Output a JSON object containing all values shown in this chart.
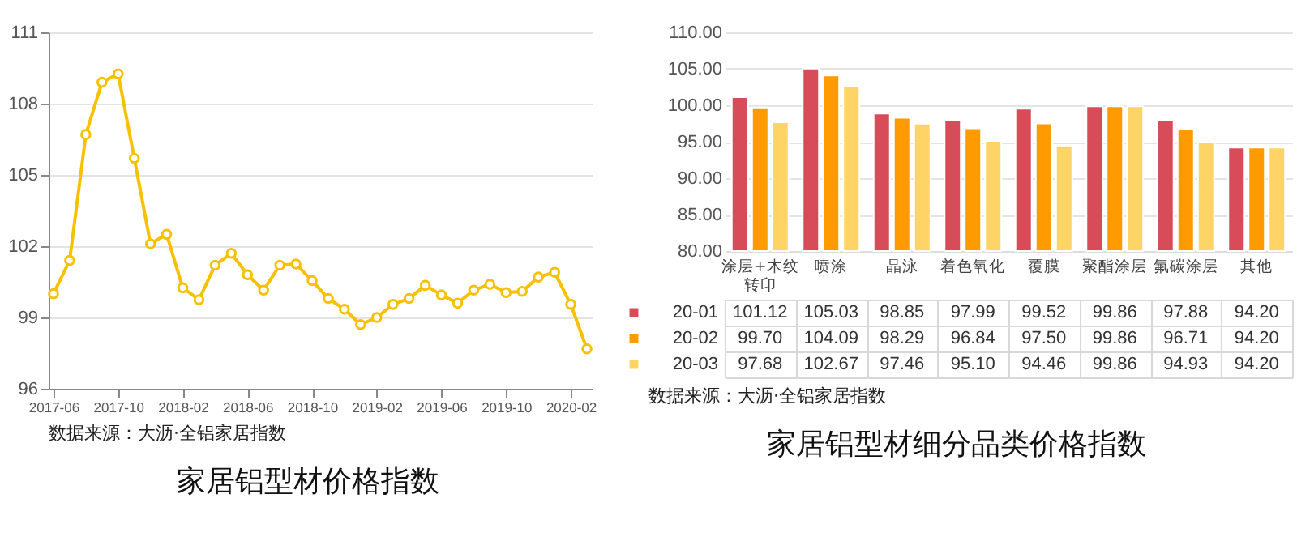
{
  "chart_data": [
    {
      "type": "line",
      "title": "家居铝型材价格指数",
      "annotations": [
        "数据来源：大沥·全铝家居指数"
      ],
      "categories": [
        "2017-06",
        null,
        null,
        null,
        "2017-10",
        null,
        null,
        null,
        "2018-02",
        null,
        null,
        null,
        "2018-06",
        null,
        null,
        null,
        "2018-10",
        null,
        null,
        null,
        "2019-02",
        null,
        null,
        null,
        "2019-06",
        null,
        null,
        null,
        "2019-10",
        null,
        null,
        null,
        "2020-02",
        null
      ],
      "series": [
        {
          "color": "#f7c100",
          "values": [
            100.0,
            101.4,
            106.7,
            108.9,
            109.25,
            105.7,
            102.1,
            102.5,
            100.25,
            99.75,
            101.2,
            101.7,
            100.8,
            100.15,
            101.2,
            101.25,
            100.55,
            99.8,
            99.35,
            98.7,
            99.0,
            99.55,
            99.8,
            100.35,
            99.95,
            99.6,
            100.15,
            100.4,
            100.05,
            100.1,
            100.7,
            100.9,
            99.55,
            97.68
          ]
        }
      ],
      "ylim": [
        96,
        111
      ],
      "yticks": [
        96,
        99,
        102,
        105,
        108,
        111
      ],
      "grid": "y",
      "marker": "circle"
    },
    {
      "type": "bar",
      "title": "家居铝型材细分品类价格指数",
      "annotations": [
        "数据来源：大沥·全铝家居指数"
      ],
      "categories": [
        "涂层+木纹转印",
        "喷涂",
        "晶泳",
        "着色氧化",
        "覆膜",
        "聚酯涂层",
        "氟碳涂层",
        "其他"
      ],
      "series": [
        {
          "name": "20-01",
          "color": "#d84b58",
          "values": [
            101.12,
            105.03,
            98.85,
            97.99,
            99.52,
            99.86,
            97.88,
            94.2
          ]
        },
        {
          "name": "20-02",
          "color": "#ff9a00",
          "values": [
            99.7,
            104.09,
            98.29,
            96.84,
            97.5,
            99.86,
            96.71,
            94.2
          ]
        },
        {
          "name": "20-03",
          "color": "#ffd466",
          "values": [
            97.68,
            102.67,
            97.46,
            95.1,
            94.46,
            99.86,
            94.93,
            94.2
          ]
        }
      ],
      "ylim": [
        80,
        110
      ],
      "yticks": [
        {
          "value": 80,
          "label": "80.00"
        },
        {
          "value": 85,
          "label": "85.00"
        },
        {
          "value": 90,
          "label": "90.00"
        },
        {
          "value": 95,
          "label": "95.00"
        },
        {
          "value": 100,
          "label": "100.00"
        },
        {
          "value": 105,
          "label": "105.00"
        },
        {
          "value": 110,
          "label": "110.00"
        }
      ],
      "grid": "y",
      "legend": "left",
      "value_labels": [
        [
          "101.12",
          "105.03",
          "98.85",
          "97.99",
          "99.52",
          "99.86",
          "97.88",
          "94.20"
        ],
        [
          "99.70",
          "104.09",
          "98.29",
          "96.84",
          "97.50",
          "99.86",
          "96.71",
          "94.20"
        ],
        [
          "97.68",
          "102.67",
          "97.46",
          "95.10",
          "94.46",
          "99.86",
          "94.93",
          "94.20"
        ]
      ]
    }
  ]
}
